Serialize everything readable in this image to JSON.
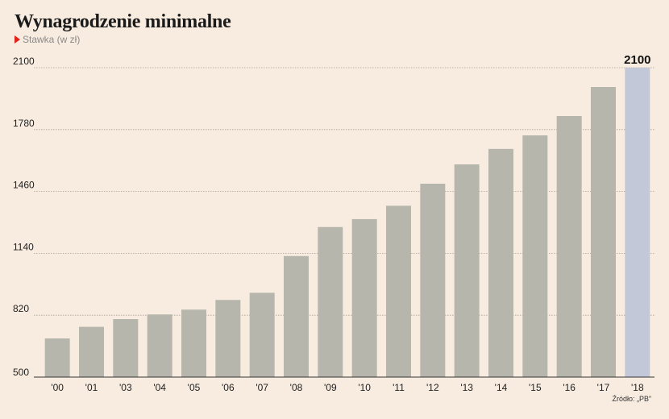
{
  "header": {
    "title": "Wynagrodzenie minimalne",
    "subtitle": "Stawka (w zł)"
  },
  "footer": {
    "source": "Źródło: „PB”"
  },
  "colors": {
    "bar": "#b7b6ac",
    "highlight": "#c3c8d8",
    "background": "#f8ece0",
    "marker": "#e2231a"
  },
  "chart_data": {
    "type": "bar",
    "categories": [
      "'00",
      "'01",
      "'03",
      "'04",
      "'05",
      "'06",
      "'07",
      "'08",
      "'09",
      "'10",
      "'11",
      "'12",
      "'13",
      "'14",
      "'15",
      "'16",
      "'17",
      "'18"
    ],
    "values": [
      700,
      760,
      800,
      824,
      849,
      899,
      936,
      1126,
      1276,
      1317,
      1386,
      1500,
      1600,
      1680,
      1750,
      1850,
      2000,
      2100
    ],
    "highlight_index": 17,
    "highlight_label": "2100",
    "ylim": [
      500,
      2100
    ],
    "yticks": [
      500,
      820,
      1140,
      1460,
      1780,
      2100
    ],
    "grid": true
  }
}
